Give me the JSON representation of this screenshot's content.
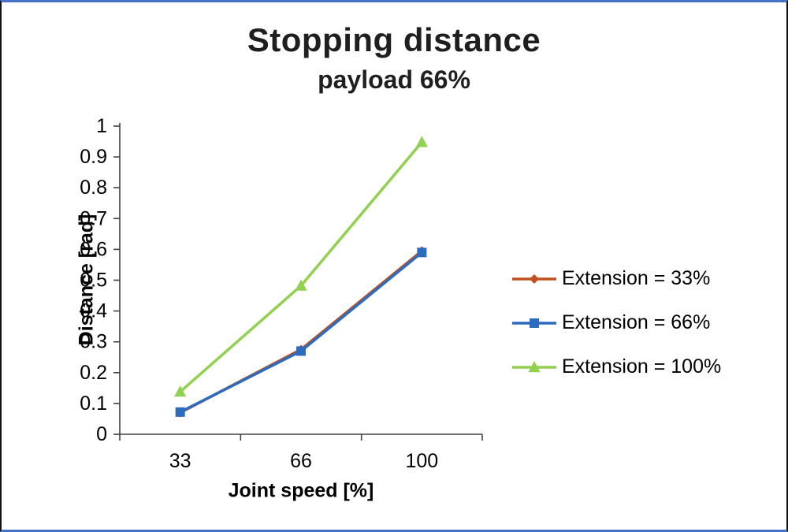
{
  "colors": {
    "border_blue": "#4472C4",
    "axis": "#404040",
    "text": "#000000",
    "title": "#1f1f1f"
  },
  "chart_data": {
    "type": "line",
    "title": "Stopping distance",
    "subtitle": "payload 66%",
    "xlabel": "Joint speed [%]",
    "ylabel": "Distance [rad]",
    "categories": [
      "33",
      "66",
      "100"
    ],
    "ylim": [
      0,
      1
    ],
    "yticks": [
      0,
      0.1,
      0.2,
      0.3,
      0.4,
      0.5,
      0.6,
      0.7,
      0.8,
      0.9,
      1
    ],
    "ytick_labels": [
      "0",
      "0.1",
      "0.2",
      "0.3",
      "0.4",
      "0.5",
      "0.6",
      "0.7",
      "0.8",
      "0.9",
      "1"
    ],
    "grid": false,
    "legend_position": "right",
    "series": [
      {
        "name": "Extension = 33%",
        "marker": "diamond",
        "color": "#C0501E",
        "values": [
          0.07,
          0.275,
          0.595
        ]
      },
      {
        "name": "Extension = 66%",
        "marker": "square",
        "color": "#2B6CBF",
        "values": [
          0.072,
          0.27,
          0.59
        ]
      },
      {
        "name": "Extension = 100%",
        "marker": "triangle",
        "color": "#92D050",
        "values": [
          0.138,
          0.482,
          0.948
        ]
      }
    ]
  }
}
